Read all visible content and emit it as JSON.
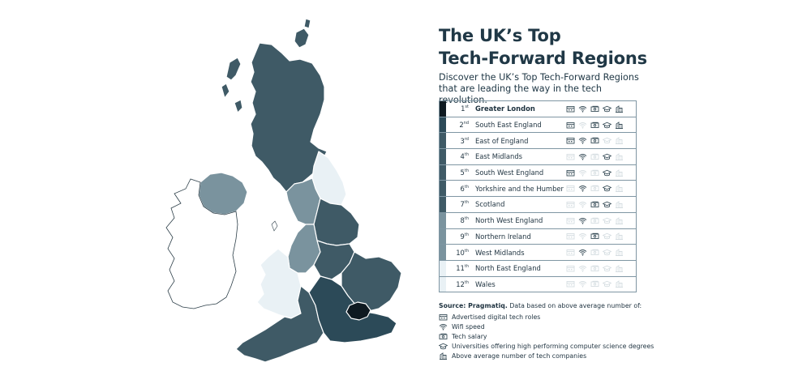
{
  "title": {
    "line1": "The UK’s Top",
    "line2": "Tech-Forward Regions"
  },
  "subtitle": "Discover the UK’s Top Tech-Forward Regions that are leading the way in the tech revolution.",
  "colors": {
    "rank1": "#0f1a21",
    "rank2": "#2c4a58",
    "rank3_to_7": "#3f5a66",
    "rank8_to_10": "#7a939e",
    "rank11_12": "#e9f1f5",
    "icon_active": "#3a4f5a",
    "icon_inactive": "#d5dde1",
    "border": "#7f96a3"
  },
  "ranking": [
    {
      "rank": "1",
      "suffix": "st",
      "region": "Greater London",
      "icons": [
        true,
        true,
        true,
        true,
        true
      ]
    },
    {
      "rank": "2",
      "suffix": "nd",
      "region": "South East England",
      "icons": [
        true,
        false,
        true,
        true,
        true
      ]
    },
    {
      "rank": "3",
      "suffix": "rd",
      "region": "East of England",
      "icons": [
        true,
        true,
        true,
        false,
        false
      ]
    },
    {
      "rank": "4",
      "suffix": "th",
      "region": "East Midlands",
      "icons": [
        false,
        true,
        false,
        true,
        false
      ]
    },
    {
      "rank": "5",
      "suffix": "th",
      "region": "South West England",
      "icons": [
        true,
        false,
        false,
        true,
        false
      ]
    },
    {
      "rank": "6",
      "suffix": "th",
      "region": "Yorkshire and the Humber",
      "icons": [
        false,
        true,
        false,
        true,
        false
      ]
    },
    {
      "rank": "7",
      "suffix": "th",
      "region": "Scotland",
      "icons": [
        false,
        false,
        true,
        true,
        false
      ]
    },
    {
      "rank": "8",
      "suffix": "th",
      "region": "North West England",
      "icons": [
        false,
        true,
        false,
        false,
        false
      ]
    },
    {
      "rank": "9",
      "suffix": "th",
      "region": "Northern Ireland",
      "icons": [
        false,
        false,
        true,
        false,
        false
      ]
    },
    {
      "rank": "10",
      "suffix": "th",
      "region": "West Midlands",
      "icons": [
        false,
        true,
        false,
        false,
        false
      ]
    },
    {
      "rank": "11",
      "suffix": "th",
      "region": "North East England",
      "icons": [
        false,
        false,
        false,
        false,
        false
      ]
    },
    {
      "rank": "12",
      "suffix": "th",
      "region": "Wales",
      "icons": [
        false,
        false,
        false,
        false,
        false
      ]
    }
  ],
  "legend": {
    "source_label": "Source: Pragmatiq.",
    "source_text": " Data based on above average number of:",
    "items": [
      {
        "icon": "calendar-icon",
        "label": "Advertised digital tech roles"
      },
      {
        "icon": "wifi-icon",
        "label": "Wifi speed"
      },
      {
        "icon": "money-icon",
        "label": "Tech salary"
      },
      {
        "icon": "graduation-cap-icon",
        "label": "Universities offering high performing computer science degrees"
      },
      {
        "icon": "building-icon",
        "label": "Above average number of tech companies"
      }
    ]
  }
}
